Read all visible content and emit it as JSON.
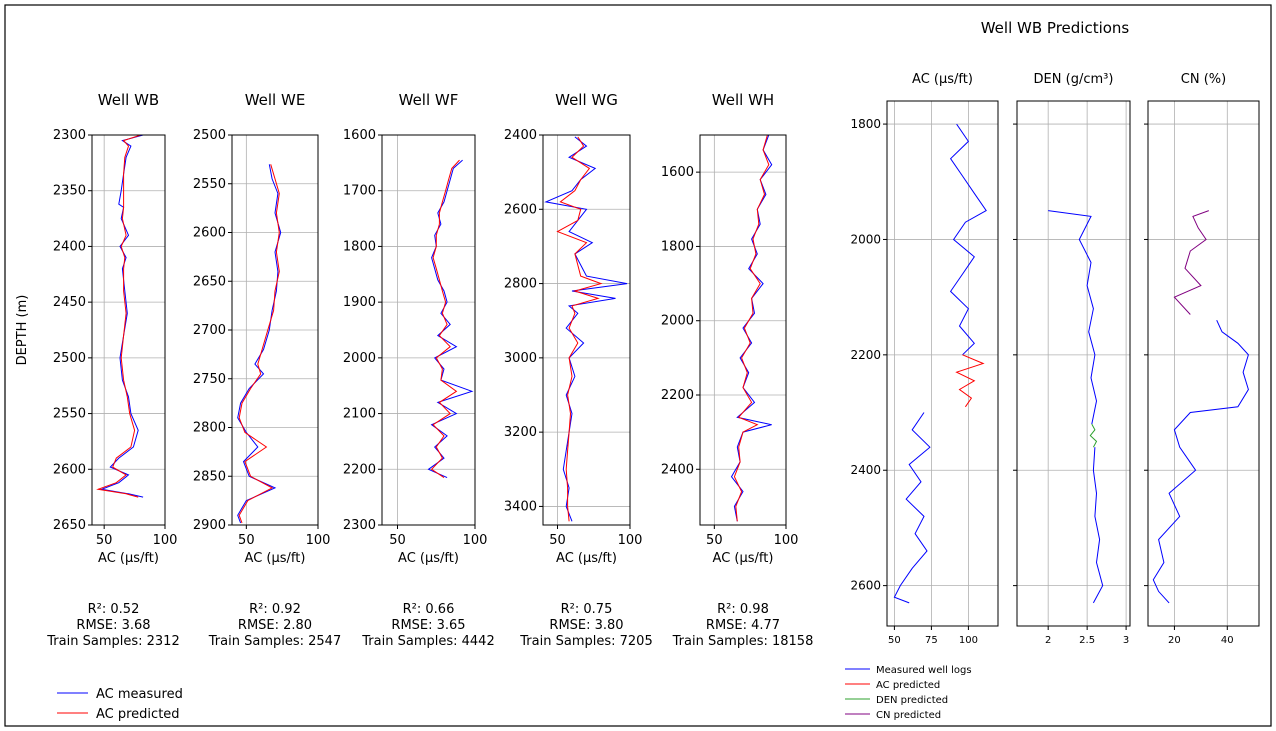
{
  "right_title": "Well WB Predictions",
  "chart_data": [
    {
      "type": "line",
      "title": "Well WB",
      "xlabel": "AC (μs/ft)",
      "ylabel": "DEPTH (m)",
      "xlim": [
        40,
        100
      ],
      "ylim": [
        2300,
        2650
      ],
      "inverted_y": true,
      "grid": true,
      "xticks": [
        50,
        100
      ],
      "yticks": [
        2300,
        2350,
        2400,
        2450,
        2500,
        2550,
        2600,
        2650
      ],
      "stats": [
        "R²: 0.52",
        "RMSE: 3.68",
        "Train Samples: 2312"
      ],
      "series": [
        {
          "name": "AC measured",
          "color": "#0000ff",
          "y": [
            2300,
            2305,
            2310,
            2320,
            2335,
            2350,
            2362,
            2365,
            2375,
            2390,
            2400,
            2410,
            2420,
            2440,
            2460,
            2480,
            2500,
            2520,
            2535,
            2550,
            2565,
            2580,
            2590,
            2598,
            2605,
            2612,
            2618,
            2622,
            2625
          ],
          "x": [
            82,
            65,
            72,
            68,
            66,
            64,
            62,
            66,
            64,
            70,
            63,
            68,
            65,
            67,
            69,
            66,
            63,
            65,
            70,
            72,
            78,
            74,
            62,
            55,
            70,
            62,
            48,
            70,
            82
          ]
        },
        {
          "name": "AC predicted",
          "color": "#ff0000",
          "y": [
            2300,
            2305,
            2310,
            2320,
            2335,
            2350,
            2362,
            2365,
            2375,
            2390,
            2400,
            2410,
            2420,
            2440,
            2460,
            2480,
            2500,
            2520,
            2535,
            2550,
            2565,
            2580,
            2590,
            2598,
            2605,
            2612,
            2618,
            2622,
            2625
          ],
          "x": [
            80,
            66,
            70,
            67,
            66,
            66,
            66,
            66,
            65,
            68,
            64,
            67,
            66,
            66,
            68,
            66,
            64,
            66,
            69,
            71,
            75,
            72,
            60,
            57,
            68,
            60,
            45,
            68,
            78
          ]
        }
      ]
    },
    {
      "type": "line",
      "title": "Well WE",
      "xlabel": "AC (μs/ft)",
      "xlim": [
        40,
        100
      ],
      "ylim": [
        2500,
        2900
      ],
      "inverted_y": true,
      "grid": true,
      "xticks": [
        50,
        100
      ],
      "yticks": [
        2500,
        2550,
        2600,
        2650,
        2700,
        2750,
        2800,
        2850,
        2900
      ],
      "stats": [
        "R²: 0.92",
        "RMSE: 2.80",
        "Train Samples: 2547"
      ],
      "series": [
        {
          "name": "AC measured",
          "color": "#0000ff",
          "y": [
            2530,
            2545,
            2560,
            2580,
            2600,
            2620,
            2640,
            2660,
            2680,
            2700,
            2720,
            2735,
            2745,
            2760,
            2775,
            2790,
            2805,
            2820,
            2835,
            2850,
            2862,
            2875,
            2890,
            2898
          ],
          "x": [
            66,
            68,
            72,
            70,
            74,
            70,
            72,
            71,
            68,
            66,
            62,
            56,
            62,
            52,
            46,
            44,
            50,
            58,
            48,
            52,
            70,
            50,
            44,
            46
          ]
        },
        {
          "name": "AC predicted",
          "color": "#ff0000",
          "y": [
            2530,
            2545,
            2560,
            2580,
            2600,
            2620,
            2640,
            2660,
            2680,
            2700,
            2720,
            2735,
            2745,
            2760,
            2775,
            2790,
            2805,
            2820,
            2835,
            2850,
            2862,
            2875,
            2890,
            2898
          ],
          "x": [
            67,
            70,
            73,
            71,
            73,
            71,
            73,
            70,
            69,
            65,
            61,
            58,
            60,
            53,
            47,
            45,
            49,
            64,
            49,
            53,
            68,
            51,
            45,
            47
          ]
        }
      ]
    },
    {
      "type": "line",
      "title": "Well WF",
      "xlabel": "AC (μs/ft)",
      "xlim": [
        40,
        100
      ],
      "ylim": [
        1600,
        2300
      ],
      "inverted_y": true,
      "grid": true,
      "xticks": [
        50,
        100
      ],
      "yticks": [
        1600,
        1700,
        1800,
        1900,
        2000,
        2100,
        2200,
        2300
      ],
      "stats": [
        "R²: 0.66",
        "RMSE: 3.65",
        "Train Samples: 4442"
      ],
      "series": [
        {
          "name": "AC measured",
          "color": "#0000ff",
          "y": [
            1645,
            1660,
            1680,
            1700,
            1720,
            1740,
            1760,
            1780,
            1800,
            1820,
            1840,
            1860,
            1880,
            1900,
            1920,
            1940,
            1960,
            1980,
            2000,
            2020,
            2040,
            2060,
            2080,
            2100,
            2120,
            2140,
            2160,
            2180,
            2200,
            2215
          ],
          "x": [
            92,
            86,
            84,
            82,
            80,
            76,
            78,
            74,
            75,
            72,
            74,
            76,
            80,
            82,
            78,
            84,
            76,
            88,
            74,
            80,
            78,
            98,
            76,
            88,
            72,
            82,
            74,
            80,
            70,
            82
          ]
        },
        {
          "name": "AC predicted",
          "color": "#ff0000",
          "y": [
            1645,
            1660,
            1680,
            1700,
            1720,
            1740,
            1760,
            1780,
            1800,
            1820,
            1840,
            1860,
            1880,
            1900,
            1920,
            1940,
            1960,
            1980,
            2000,
            2020,
            2040,
            2060,
            2080,
            2100,
            2120,
            2140,
            2160,
            2180,
            2200,
            2215
          ],
          "x": [
            90,
            85,
            83,
            81,
            79,
            77,
            77,
            75,
            75,
            73,
            75,
            77,
            79,
            81,
            79,
            82,
            77,
            84,
            75,
            79,
            78,
            88,
            77,
            84,
            73,
            80,
            75,
            79,
            72,
            80
          ]
        }
      ]
    },
    {
      "type": "line",
      "title": "Well WG",
      "xlabel": "AC (μs/ft)",
      "xlim": [
        40,
        100
      ],
      "ylim": [
        2400,
        3450
      ],
      "inverted_y": true,
      "grid": true,
      "xticks": [
        50,
        100
      ],
      "yticks": [
        2400,
        2600,
        2800,
        3000,
        3200,
        3400
      ],
      "stats": [
        "R²: 0.75",
        "RMSE: 3.80",
        "Train Samples: 7205"
      ],
      "series": [
        {
          "name": "AC measured",
          "color": "#0000ff",
          "y": [
            2405,
            2430,
            2460,
            2490,
            2520,
            2550,
            2580,
            2600,
            2630,
            2660,
            2690,
            2720,
            2750,
            2780,
            2800,
            2820,
            2840,
            2860,
            2880,
            2920,
            2960,
            3000,
            3050,
            3100,
            3150,
            3200,
            3250,
            3300,
            3350,
            3400,
            3440
          ],
          "x": [
            62,
            70,
            58,
            76,
            66,
            60,
            42,
            70,
            64,
            58,
            74,
            62,
            66,
            70,
            98,
            60,
            90,
            58,
            64,
            56,
            68,
            58,
            62,
            56,
            60,
            58,
            56,
            54,
            58,
            56,
            60
          ]
        },
        {
          "name": "AC predicted",
          "color": "#ff0000",
          "y": [
            2405,
            2430,
            2460,
            2490,
            2520,
            2550,
            2580,
            2600,
            2630,
            2660,
            2690,
            2720,
            2750,
            2780,
            2800,
            2820,
            2840,
            2860,
            2880,
            2920,
            2960,
            3000,
            3050,
            3100,
            3150,
            3200,
            3250,
            3300,
            3350,
            3400,
            3440
          ],
          "x": [
            64,
            68,
            60,
            72,
            66,
            62,
            52,
            66,
            64,
            50,
            70,
            62,
            64,
            66,
            80,
            62,
            78,
            60,
            62,
            58,
            64,
            58,
            60,
            57,
            59,
            58,
            57,
            56,
            57,
            57,
            58
          ]
        }
      ]
    },
    {
      "type": "line",
      "title": "Well WH",
      "xlabel": "AC (μs/ft)",
      "xlim": [
        40,
        100
      ],
      "ylim": [
        1500,
        2550
      ],
      "inverted_y": true,
      "grid": true,
      "xticks": [
        50,
        100
      ],
      "yticks": [
        1600,
        1800,
        2000,
        2200,
        2400
      ],
      "stats": [
        "R²: 0.98",
        "RMSE: 4.77",
        "Train Samples: 18158"
      ],
      "series": [
        {
          "name": "AC measured",
          "color": "#0000ff",
          "y": [
            1500,
            1540,
            1580,
            1620,
            1660,
            1700,
            1740,
            1780,
            1820,
            1860,
            1900,
            1940,
            1980,
            2020,
            2060,
            2100,
            2140,
            2180,
            2220,
            2260,
            2280,
            2300,
            2340,
            2380,
            2420,
            2460,
            2500,
            2540
          ],
          "x": [
            88,
            84,
            90,
            82,
            86,
            80,
            82,
            76,
            80,
            74,
            84,
            76,
            78,
            70,
            76,
            68,
            74,
            70,
            78,
            66,
            90,
            70,
            66,
            68,
            62,
            70,
            64,
            66
          ]
        },
        {
          "name": "AC predicted",
          "color": "#ff0000",
          "y": [
            1500,
            1540,
            1580,
            1620,
            1660,
            1700,
            1740,
            1780,
            1820,
            1860,
            1900,
            1940,
            1980,
            2020,
            2060,
            2100,
            2140,
            2180,
            2220,
            2260,
            2280,
            2300,
            2340,
            2380,
            2420,
            2460,
            2500,
            2540
          ],
          "x": [
            87,
            84,
            88,
            82,
            85,
            80,
            81,
            77,
            79,
            75,
            82,
            76,
            77,
            71,
            75,
            69,
            73,
            70,
            76,
            67,
            80,
            70,
            67,
            68,
            64,
            69,
            65,
            66
          ]
        }
      ]
    },
    {
      "type": "line",
      "title": "AC (μs/ft)",
      "xlim": [
        45,
        120
      ],
      "ylim": [
        1760,
        2670
      ],
      "inverted_y": true,
      "grid": true,
      "xticks": [
        50,
        75,
        100
      ],
      "yticks": [
        1800,
        2000,
        2200,
        2400,
        2600
      ],
      "series": [
        {
          "name": "Measured well logs",
          "color": "#0000ff",
          "y": [
            1800,
            1830,
            1860,
            1890,
            1920,
            1950,
            1970,
            2000,
            2030,
            2060,
            2090,
            2120,
            2150,
            2180,
            2200
          ],
          "x": [
            92,
            100,
            88,
            96,
            104,
            112,
            98,
            90,
            104,
            96,
            88,
            100,
            94,
            104,
            96
          ]
        },
        {
          "name": "AC predicted",
          "color": "#ff0000",
          "y": [
            2200,
            2215,
            2230,
            2245,
            2260,
            2275,
            2290
          ],
          "x": [
            96,
            110,
            92,
            104,
            94,
            102,
            98
          ]
        },
        {
          "name": "Measured well logs",
          "color": "#0000ff",
          "y": [
            2300,
            2330,
            2360,
            2390,
            2420,
            2450,
            2480,
            2510,
            2540,
            2570,
            2600,
            2620,
            2630
          ],
          "x": [
            70,
            62,
            74,
            60,
            68,
            58,
            70,
            64,
            72,
            62,
            54,
            50,
            60
          ]
        }
      ]
    },
    {
      "type": "line",
      "title": "DEN (g/cm³)",
      "xlim": [
        1.6,
        3.05
      ],
      "ylim": [
        1760,
        2670
      ],
      "inverted_y": true,
      "grid": true,
      "xticks": [
        2.0,
        2.5,
        3.0
      ],
      "yticks": [
        1800,
        2000,
        2200,
        2400,
        2600
      ],
      "series": [
        {
          "name": "Measured well logs",
          "color": "#0000ff",
          "y": [
            1950,
            1960,
            2000,
            2040,
            2080,
            2120,
            2160,
            2200,
            2240,
            2280,
            2320
          ],
          "x": [
            2.0,
            2.55,
            2.4,
            2.55,
            2.5,
            2.58,
            2.52,
            2.6,
            2.55,
            2.62,
            2.56
          ]
        },
        {
          "name": "DEN predicted",
          "color": "#2ca02c",
          "y": [
            2320,
            2330,
            2340,
            2350,
            2360
          ],
          "x": [
            2.56,
            2.6,
            2.54,
            2.62,
            2.58
          ]
        },
        {
          "name": "Measured well logs",
          "color": "#0000ff",
          "y": [
            2360,
            2400,
            2440,
            2480,
            2520,
            2560,
            2600,
            2630
          ],
          "x": [
            2.6,
            2.58,
            2.62,
            2.6,
            2.66,
            2.62,
            2.7,
            2.58
          ]
        }
      ]
    },
    {
      "type": "line",
      "title": "CN (%)",
      "xlim": [
        10,
        52
      ],
      "ylim": [
        1760,
        2670
      ],
      "inverted_y": true,
      "grid": true,
      "xticks": [
        20,
        40
      ],
      "yticks": [
        1800,
        2000,
        2200,
        2400,
        2600
      ],
      "series": [
        {
          "name": "CN predicted",
          "color": "#800080",
          "y": [
            1950,
            1960,
            1980,
            2000,
            2020,
            2050,
            2080,
            2100,
            2130
          ],
          "x": [
            33,
            27,
            29,
            32,
            26,
            24,
            30,
            20,
            26
          ]
        },
        {
          "name": "Measured well logs",
          "color": "#0000ff",
          "y": [
            2140,
            2160,
            2180,
            2200,
            2230,
            2260,
            2290,
            2300,
            2330,
            2360,
            2400,
            2440,
            2480,
            2520,
            2560,
            2590,
            2610,
            2630
          ],
          "x": [
            36,
            38,
            44,
            48,
            46,
            48,
            44,
            26,
            20,
            22,
            28,
            18,
            22,
            14,
            16,
            12,
            14,
            18
          ]
        }
      ]
    }
  ],
  "legend_left": [
    {
      "label": "AC measured",
      "color": "#0000ff"
    },
    {
      "label": "AC predicted",
      "color": "#ff0000"
    }
  ],
  "legend_right": [
    {
      "label": "Measured well logs",
      "color": "#0000ff"
    },
    {
      "label": "AC predicted",
      "color": "#ff0000"
    },
    {
      "label": "DEN predicted",
      "color": "#2ca02c"
    },
    {
      "label": "CN predicted",
      "color": "#800080"
    }
  ]
}
